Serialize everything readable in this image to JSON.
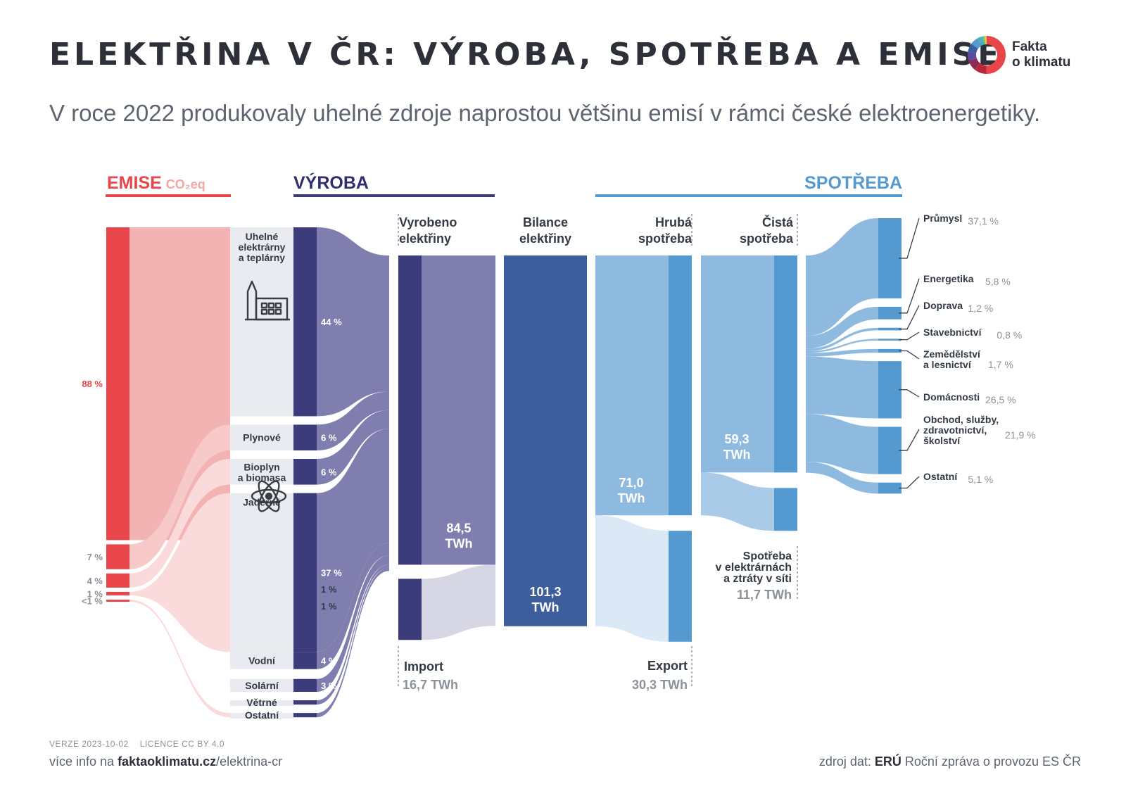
{
  "header": {
    "title": "ELEKTŘINA V ČR: VÝROBA, SPOTŘEBA A EMISE",
    "subtitle": "V roce 2022 produkovaly uhelné zdroje naprostou většinu emisí v rámci české elektroenergetiky.",
    "logo_line1": "Fakta",
    "logo_line2": "o klimatu"
  },
  "sections": {
    "emise": "EMISE",
    "emise_unit": "CO₂eq",
    "vyroba": "VÝROBA",
    "spotreba": "SPOTŘEBA"
  },
  "colors": {
    "emise": "#e8464b",
    "emise_light": "#f4b3b3",
    "vyroba_dark": "#3c3b7c",
    "vyroba_light": "#807eae",
    "bilance": "#3c5e9c",
    "spotreba_dark": "#5499cf",
    "spotreba_light": "#8ebae0",
    "export_light": "#dbe8f5",
    "import_light": "#d6d6e4",
    "title": "#2d3038",
    "muted": "#8c929a"
  },
  "chart_data": {
    "type": "sankey",
    "unit": "TWh",
    "emissions": [
      {
        "source": "Uhelné elektrárny a teplárny",
        "label": "88 %",
        "share": 88
      },
      {
        "source": "Plynové",
        "label": "7 %",
        "share": 7
      },
      {
        "source": "Bioplyn a biomasa",
        "label": "4 %",
        "share": 4
      },
      {
        "source": "Ostatní",
        "label": "1 %",
        "share": 1
      },
      {
        "source": "Ostatní zdroje",
        "label": "<1 %",
        "share": 0.5
      }
    ],
    "production": [
      {
        "name": "Uhelné elektrárny a teplárny",
        "label": "Uhelné\nelektrárny\na teplárny",
        "share": 44,
        "share_label": "44 %",
        "icon": "factory-icon"
      },
      {
        "name": "Plynové",
        "label": "Plynové",
        "share": 6,
        "share_label": "6 %"
      },
      {
        "name": "Bioplyn a biomasa",
        "label": "Bioplyn\na biomasa",
        "share": 6,
        "share_label": "6 %"
      },
      {
        "name": "Jaderné",
        "label": "Jaderné",
        "share": 37,
        "share_label": "37 %",
        "icon": "atom-icon"
      },
      {
        "name": "Vodní",
        "label": "Vodní",
        "share": 4,
        "share_label": "4 %"
      },
      {
        "name": "Solární",
        "label": "Solární",
        "share": 3,
        "share_label": "3 %"
      },
      {
        "name": "Větrné",
        "label": "Větrné",
        "share": 1,
        "share_label": "1 %"
      },
      {
        "name": "Ostatní",
        "label": "Ostatní",
        "share": 1,
        "share_label": "1 %"
      }
    ],
    "nodes": {
      "vyrobeno": {
        "label": "Vyrobeno\nelektřiny",
        "value": 84.5,
        "value_label": "84,5\nTWh"
      },
      "import": {
        "label": "Import",
        "value": 16.7,
        "value_label": "16,7 TWh"
      },
      "bilance": {
        "label": "Bilance\nelektřiny",
        "value": 101.3,
        "value_label": "101,3\nTWh"
      },
      "hruba": {
        "label": "Hrubá\nspotřeba",
        "value": 71.0,
        "value_label": "71,0\nTWh"
      },
      "export": {
        "label": "Export",
        "value": 30.3,
        "value_label": "30,3 TWh"
      },
      "cista": {
        "label": "Čistá\nspotřeba",
        "value": 59.3,
        "value_label": "59,3\nTWh"
      },
      "ztraty": {
        "label": "Spotřeba\nv elektrárnách\na ztráty v síti",
        "value": 11.7,
        "value_label": "11,7 TWh"
      }
    },
    "consumption": [
      {
        "name": "Průmysl",
        "label": "Průmysl",
        "share": 37.1,
        "share_label": "37,1 %"
      },
      {
        "name": "Energetika",
        "label": "Energetika",
        "share": 5.8,
        "share_label": "5,8 %"
      },
      {
        "name": "Doprava",
        "label": "Doprava",
        "share": 1.2,
        "share_label": "1,2 %"
      },
      {
        "name": "Stavebnictví",
        "label": "Stavebnictví",
        "share": 0.8,
        "share_label": "0,8 %"
      },
      {
        "name": "Zemědělství a lesnictví",
        "label": "Zemědělství\na lesnictví",
        "share": 1.7,
        "share_label": "1,7 %"
      },
      {
        "name": "Domácnosti",
        "label": "Domácnosti",
        "share": 26.5,
        "share_label": "26,5 %"
      },
      {
        "name": "Obchod, služby, zdravotnictví, školství",
        "label": "Obchod, služby,\nzdravotnictví,\nškolství",
        "share": 21.9,
        "share_label": "21,9 %"
      },
      {
        "name": "Ostatní",
        "label": "Ostatní",
        "share": 5.1,
        "share_label": "5,1 %"
      }
    ]
  },
  "footer": {
    "version": "VERZE 2023-10-02",
    "license": "LICENCE CC BY 4.0",
    "info_prefix": "více info na ",
    "info_domain": "faktaoklimatu.cz",
    "info_path": "/elektrina-cr",
    "source_prefix": "zdroj dat: ",
    "source_org": "ERÚ",
    "source_doc": " Roční zpráva o provozu ES ČR"
  }
}
